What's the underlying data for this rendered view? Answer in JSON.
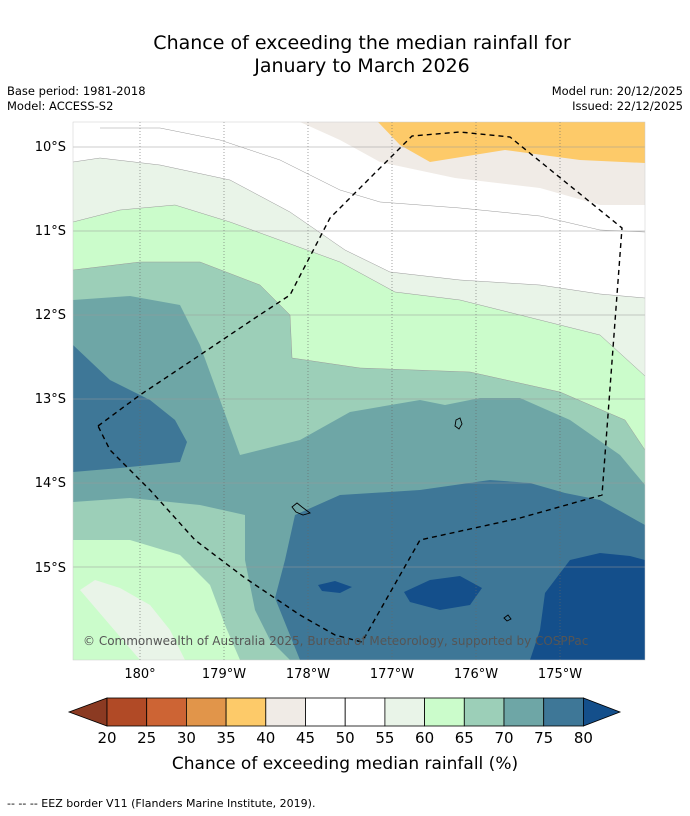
{
  "title": {
    "line1": "Chance of exceeding the median rainfall for",
    "line2": "January to March 2026"
  },
  "meta": {
    "base_period": "Base period: 1981-2018",
    "model": "Model: ACCESS-S2",
    "model_run": "Model run: 20/12/2025",
    "issued": "Issued: 22/12/2025"
  },
  "map": {
    "lat_labels": [
      "10°S",
      "11°S",
      "12°S",
      "13°S",
      "14°S",
      "15°S"
    ],
    "lon_labels": [
      "180°",
      "179°W",
      "178°W",
      "177°W",
      "176°W",
      "175°W"
    ],
    "copyright": "© Commonwealth of Australia 2025, Bureau of Meteorology, supported by COSPPac"
  },
  "colorbar": {
    "labels": [
      "20",
      "25",
      "30",
      "35",
      "40",
      "45",
      "50",
      "55",
      "60",
      "65",
      "70",
      "75",
      "80"
    ],
    "title": "Chance of exceeding median rainfall (%)"
  },
  "colors": {
    "below_20": "#8b3a22",
    "c20_25": "#b14a26",
    "c25_30": "#cd6434",
    "c30_35": "#e1954a",
    "c35_40": "#fdca69",
    "c40_45": "#f0ebe6",
    "c45_55": "#ffffff",
    "c55_60": "#e9f4e8",
    "c60_65": "#cbfccb",
    "c65_70": "#9ccfb8",
    "c70_75": "#6ea6a6",
    "c75_80": "#3e7797",
    "above_80": "#144f8b"
  },
  "footnote": "-- -- -- EEZ border V11 (Flanders Marine Institute, 2019)."
}
